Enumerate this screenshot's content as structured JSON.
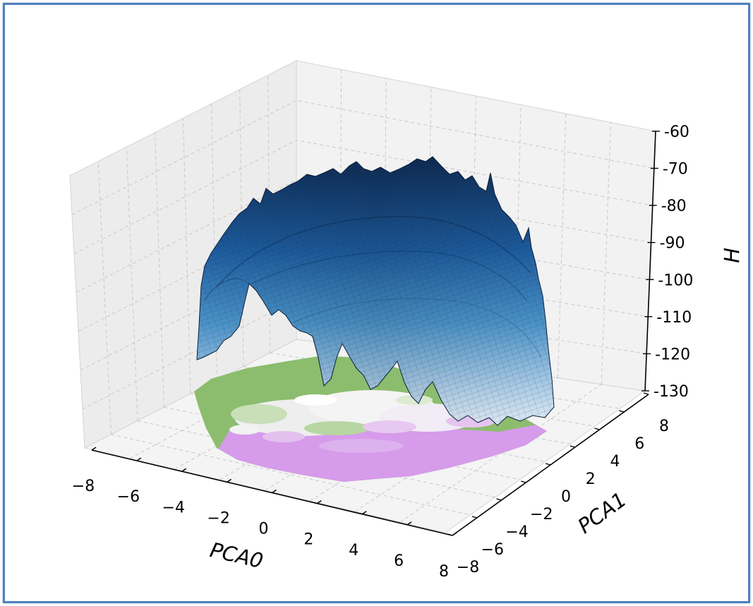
{
  "chart_data": {
    "type": "surface3d",
    "title": "",
    "xlabel": "PCA0",
    "ylabel": "PCA1",
    "zlabel": "H",
    "xlim": [
      -8,
      8
    ],
    "ylim": [
      -8,
      8
    ],
    "zlim": [
      -130,
      -60
    ],
    "x_ticks": [
      "−8",
      "−6",
      "−4",
      "−2",
      "0",
      "2",
      "4",
      "6",
      "8"
    ],
    "y_ticks": [
      "−8",
      "−6",
      "−4",
      "−2",
      "0",
      "2",
      "4",
      "6",
      "8"
    ],
    "z_ticks": [
      "-130",
      "-120",
      "-110",
      "-100",
      "-90",
      "-80",
      "-70",
      "-60"
    ],
    "grid": true,
    "surface": {
      "colormap": "Blues",
      "z_peak": -67,
      "z_rim_min": -130,
      "description_series": [
        {
          "x": -6,
          "y": -2,
          "z": -110
        },
        {
          "x": -4,
          "y": 0,
          "z": -80
        },
        {
          "x": 0,
          "y": 2,
          "z": -68
        },
        {
          "x": 2,
          "y": 4,
          "z": -67
        },
        {
          "x": 4,
          "y": 2,
          "z": -82
        },
        {
          "x": 6,
          "y": 0,
          "z": -112
        },
        {
          "x": 2,
          "y": -4,
          "z": -120
        }
      ]
    },
    "floor_contour": {
      "colors": {
        "low": "#d69bea",
        "mid": "#f3f3f3",
        "high": "#8cbd6e"
      }
    }
  },
  "colors": {
    "frame_border": "#4f81bd",
    "pane_back": "#f1f1f1",
    "pane_side": "#f4f4f4",
    "pane_floor": "#f6f6f6",
    "surface_dark": "#0e2c55",
    "surface_mid": "#3a84c0",
    "surface_light": "#dbe8f5"
  }
}
